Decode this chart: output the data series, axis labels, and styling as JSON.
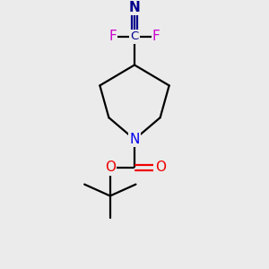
{
  "background_color": "#ebebeb",
  "bond_color": "#000000",
  "N_color": "#0000ee",
  "O_color": "#ee0000",
  "F_color": "#cc00cc",
  "CN_color": "#00008b",
  "figsize": [
    3.0,
    3.0
  ],
  "dpi": 100,
  "xlim": [
    0,
    10
  ],
  "ylim": [
    0,
    10
  ]
}
